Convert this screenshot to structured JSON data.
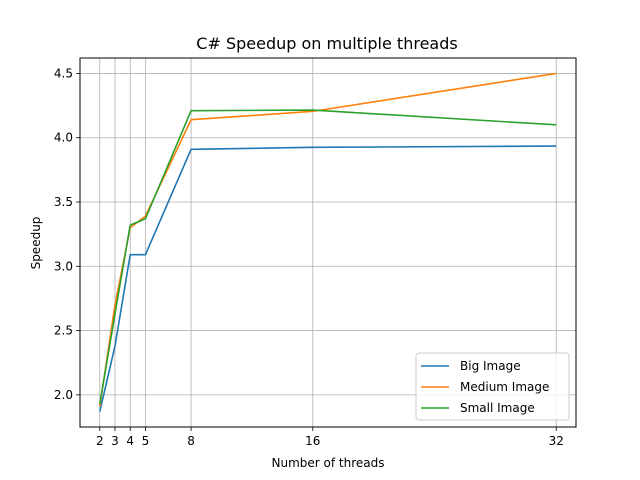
{
  "chart_data": {
    "type": "line",
    "title": "C# Speedup on multiple threads",
    "xlabel": "Number of threads",
    "ylabel": "Speedup",
    "x": [
      2,
      3,
      4,
      5,
      8,
      16,
      32
    ],
    "xticks": [
      "2",
      "3",
      "4",
      "5",
      "8",
      "16",
      "32"
    ],
    "yticks": [
      "2.0",
      "2.5",
      "3.0",
      "3.5",
      "4.0",
      "4.5"
    ],
    "xlim": [
      0.7,
      33.3
    ],
    "ylim": [
      1.75,
      4.62
    ],
    "grid": true,
    "legend_position": "lower-right",
    "series": [
      {
        "name": "Big Image",
        "color": "#1f77b4",
        "values": [
          1.87,
          2.38,
          3.09,
          3.09,
          3.91,
          3.925,
          3.935
        ]
      },
      {
        "name": "Medium Image",
        "color": "#ff7f0e",
        "values": [
          1.91,
          2.7,
          3.3,
          3.39,
          4.14,
          4.205,
          4.5
        ]
      },
      {
        "name": "Small Image",
        "color": "#2ca02c",
        "values": [
          1.93,
          2.63,
          3.32,
          3.37,
          4.21,
          4.215,
          4.1
        ]
      }
    ]
  }
}
